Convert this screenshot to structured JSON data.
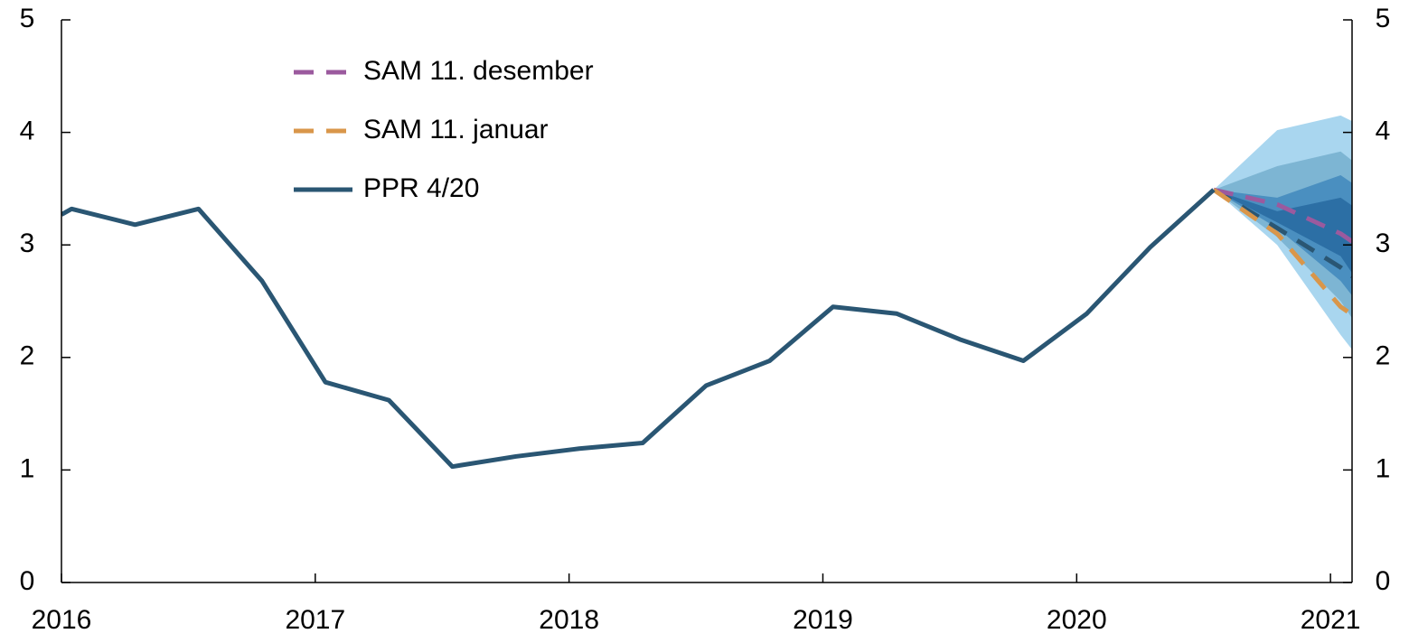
{
  "chart_data": {
    "type": "line",
    "xlim": [
      2016,
      2021.085
    ],
    "xticks": [
      2016,
      2017,
      2018,
      2019,
      2020,
      2021
    ],
    "ylim": [
      0,
      5
    ],
    "yticks": [
      0,
      1,
      2,
      3,
      4,
      5
    ],
    "y2lim": [
      0,
      5
    ],
    "y2ticks": [
      0,
      1,
      2,
      3,
      4,
      5
    ],
    "bands": [
      {
        "color": "#a9d6ef",
        "x": [
          2020.54,
          2020.79,
          2021.04,
          2021.085
        ],
        "lower": [
          3.49,
          3.0,
          2.2,
          2.07
        ],
        "upper": [
          3.49,
          4.02,
          4.15,
          4.1
        ]
      },
      {
        "color": "#7db5d3",
        "x": [
          2020.54,
          2020.79,
          2021.04,
          2021.085
        ],
        "lower": [
          3.49,
          3.07,
          2.5,
          2.35
        ],
        "upper": [
          3.49,
          3.7,
          3.83,
          3.75
        ]
      },
      {
        "color": "#4a8fc0",
        "x": [
          2020.54,
          2020.79,
          2021.04,
          2021.085
        ],
        "lower": [
          3.49,
          3.15,
          2.68,
          2.55
        ],
        "upper": [
          3.49,
          3.42,
          3.62,
          3.55
        ]
      },
      {
        "color": "#2c6fa5",
        "x": [
          2020.54,
          2020.79,
          2021.04,
          2021.085
        ],
        "lower": [
          3.49,
          3.2,
          2.9,
          2.75
        ],
        "upper": [
          3.49,
          3.3,
          3.42,
          3.35
        ]
      }
    ],
    "series": [
      {
        "name": "SAM 11. desember",
        "color": "#9b5a9e",
        "dash": true,
        "x": [
          2020.54,
          2020.79,
          2021.04,
          2021.085
        ],
        "values": [
          3.49,
          3.36,
          3.1,
          3.03
        ]
      },
      {
        "name": "SAM 11. januar",
        "color": "#d9964a",
        "dash": true,
        "x": [
          2020.54,
          2020.79,
          2021.04,
          2021.085
        ],
        "values": [
          3.49,
          3.1,
          2.45,
          2.38
        ]
      },
      {
        "name": "PPR 4/20",
        "color": "#2a5673",
        "dash": false,
        "x": [
          2016,
          2016.04,
          2016.29,
          2016.54,
          2016.79,
          2017.04,
          2017.29,
          2017.54,
          2017.79,
          2018.04,
          2018.29,
          2018.54,
          2018.79,
          2019.04,
          2019.29,
          2019.54,
          2019.79,
          2020.04,
          2020.29,
          2020.54
        ],
        "values": [
          3.27,
          3.32,
          3.18,
          3.32,
          2.68,
          1.78,
          1.62,
          1.03,
          1.12,
          1.19,
          1.24,
          1.75,
          1.97,
          2.45,
          2.39,
          2.16,
          1.97,
          2.39,
          2.98,
          3.49
        ]
      },
      {
        "color": "#2a5673",
        "dash": true,
        "x": [
          2020.54,
          2020.79,
          2021.04,
          2021.085
        ],
        "values": [
          3.49,
          3.15,
          2.8,
          2.72
        ]
      }
    ]
  }
}
